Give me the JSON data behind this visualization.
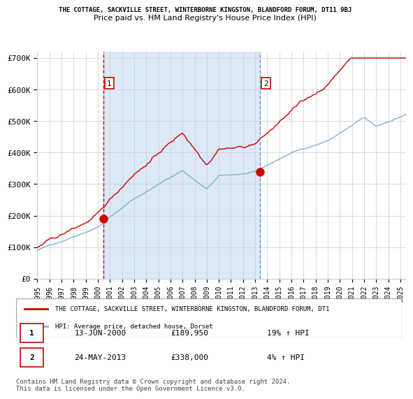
{
  "title_main": "THE COTTAGE, SACKVILLE STREET, WINTERBORNE KINGSTON, BLANDFORD FORUM, DT11 9BJ",
  "title_sub": "Price paid vs. HM Land Registry's House Price Index (HPI)",
  "legend_line1": "THE COTTAGE, SACKVILLE STREET, WINTERBORNE KINGSTON, BLANDFORD FORUM, DT1",
  "legend_line2": "HPI: Average price, detached house, Dorset",
  "transaction1_date": "13-JUN-2000",
  "transaction1_price": 189950,
  "transaction1_label": "19% ↑ HPI",
  "transaction2_date": "24-MAY-2013",
  "transaction2_price": 338000,
  "transaction2_label": "4% ↑ HPI",
  "footnote": "Contains HM Land Registry data © Crown copyright and database right 2024.\nThis data is licensed under the Open Government Licence v3.0.",
  "ylim": [
    0,
    720000
  ],
  "yticks": [
    0,
    100000,
    200000,
    300000,
    400000,
    500000,
    600000,
    700000
  ],
  "ytick_labels": [
    "£0",
    "£100K",
    "£200K",
    "£300K",
    "£400K",
    "£500K",
    "£600K",
    "£700K"
  ],
  "background_color": "#ffffff",
  "plot_bg_color": "#ffffff",
  "shading_color": "#dce9f7",
  "red_color": "#cc0000",
  "blue_color": "#7fb3d3",
  "grid_color": "#cccccc",
  "vline1_x": 2000.45,
  "vline2_x": 2013.39,
  "xmin": 1995.0,
  "xmax": 2025.5
}
